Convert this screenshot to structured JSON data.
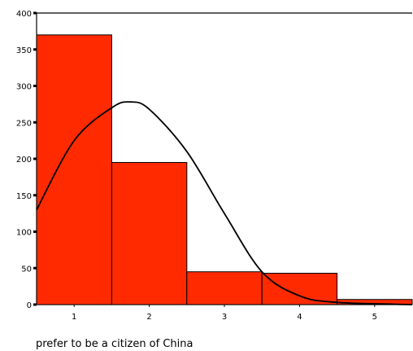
{
  "chart_data": {
    "type": "bar",
    "title": "",
    "xlabel": "prefer to be a citizen of China",
    "ylabel": "",
    "categories": [
      "1",
      "2",
      "3",
      "4",
      "5"
    ],
    "values": [
      370,
      195,
      45,
      43,
      7
    ],
    "ylim": [
      0,
      400
    ],
    "yticks": [
      0,
      50,
      100,
      150,
      200,
      250,
      300,
      350,
      400
    ],
    "xticks": [
      "1",
      "2",
      "3",
      "4",
      "5"
    ],
    "grid": false,
    "legend": "none",
    "bar_color": "#ff2a00",
    "curve": {
      "type": "normal",
      "x": [
        0.5,
        1.0,
        1.5,
        1.75,
        2.0,
        2.5,
        3.0,
        3.5,
        4.0,
        4.5,
        5.5
      ],
      "y": [
        130,
        225,
        270,
        278,
        268,
        210,
        125,
        45,
        12,
        3,
        0
      ]
    }
  }
}
